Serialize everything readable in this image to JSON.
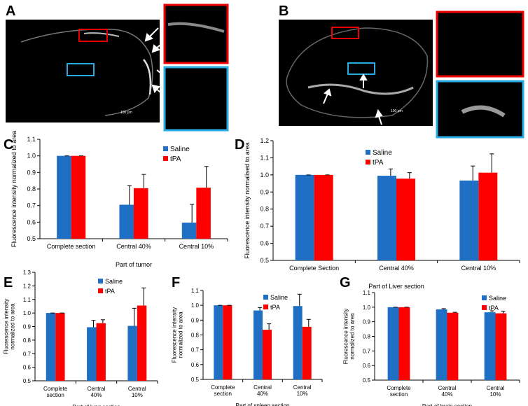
{
  "images": [
    {
      "panel": "A",
      "scale_label": "100 μm"
    },
    {
      "panel": "B",
      "scale_label": "100 μm"
    }
  ],
  "chart_data": [
    {
      "type": "bar",
      "panel": "C",
      "y_label": "Fluorescence intensity normalized to area",
      "x_label": "Part of tumor",
      "categories": [
        "Complete section",
        "Central 40%",
        "Central 10%"
      ],
      "series": [
        {
          "name": "Saline",
          "color": "#1f6fc4",
          "values": [
            1.0,
            0.705,
            0.597
          ],
          "errors": [
            0,
            0.115,
            0.11
          ]
        },
        {
          "name": "tPA",
          "color": "#ff0000",
          "values": [
            1.0,
            0.805,
            0.808
          ],
          "errors": [
            0,
            0.083,
            0.128
          ]
        }
      ],
      "ylim": [
        0.5,
        1.1
      ],
      "yticks": [
        0.5,
        0.6,
        0.7,
        0.8,
        0.9,
        {
          "value": 1,
          "label": "1.0"
        },
        1.1
      ]
    },
    {
      "type": "bar",
      "panel": "D",
      "y_label": "Fluorescence intensity normalised to area",
      "x_label": "Part of Liver section",
      "categories": [
        "Complete Section",
        "Central 40%",
        "Central 10%"
      ],
      "series": [
        {
          "name": "Saline",
          "color": "#1f6fc4",
          "values": [
            1.0,
            0.995,
            0.967
          ],
          "errors": [
            0,
            0.04,
            0.085
          ]
        },
        {
          "name": "tPA",
          "color": "#ff0000",
          "values": [
            1.0,
            0.978,
            1.013
          ],
          "errors": [
            0,
            0.035,
            0.11
          ]
        }
      ],
      "ylim": [
        0.5,
        1.2
      ],
      "yticks": [
        0.5,
        0.6,
        0.7,
        0.8,
        0.9,
        {
          "value": 1,
          "label": "1.0"
        },
        1.1,
        1.2
      ]
    },
    {
      "type": "bar",
      "panel": "E",
      "y_label": "Fluorescence intensity normalized to area",
      "x_label": "Part of lung section",
      "categories": [
        "Complete section",
        "Central 40%",
        "Central 10%"
      ],
      "series": [
        {
          "name": "Saline",
          "color": "#1f6fc4",
          "values": [
            1.0,
            0.895,
            0.905
          ],
          "errors": [
            0,
            0.05,
            0.13
          ]
        },
        {
          "name": "tPA",
          "color": "#ff0000",
          "values": [
            1.0,
            0.925,
            1.055
          ],
          "errors": [
            0,
            0.025,
            0.13
          ]
        }
      ],
      "ylim": [
        0.5,
        1.3
      ],
      "yticks": [
        0.5,
        0.6,
        0.7,
        0.8,
        0.9,
        {
          "value": 1,
          "label": "1.0"
        },
        1.1,
        1.2,
        1.3
      ]
    },
    {
      "type": "bar",
      "panel": "F",
      "y_label": "Fluorescence intensity normalized to area",
      "x_label": "Part of spleen section",
      "categories": [
        "Complete section",
        "Central 40%",
        "Central 10%"
      ],
      "series": [
        {
          "name": "Saline",
          "color": "#1f6fc4",
          "values": [
            1.0,
            0.965,
            0.995
          ],
          "errors": [
            0,
            0.02,
            0.08
          ]
        },
        {
          "name": "tPA",
          "color": "#ff0000",
          "values": [
            1.0,
            0.835,
            0.855
          ],
          "errors": [
            0,
            0.04,
            0.05
          ]
        }
      ],
      "ylim": [
        0.5,
        1.1
      ],
      "yticks": [
        0.5,
        0.6,
        0.7,
        0.8,
        0.9,
        {
          "value": 1,
          "label": "1.0"
        },
        1.1
      ]
    },
    {
      "type": "bar",
      "panel": "G",
      "y_label": "Fluorescence intensity normalized to area",
      "x_label": "Part of brain section",
      "categories": [
        "Complete section",
        "Central 40%",
        "Central 10%"
      ],
      "series": [
        {
          "name": "Saline",
          "color": "#1f6fc4",
          "values": [
            1.0,
            0.985,
            0.965
          ],
          "errors": [
            0,
            0.005,
            0.01
          ]
        },
        {
          "name": "tPA",
          "color": "#ff0000",
          "values": [
            1.0,
            0.962,
            0.958
          ],
          "errors": [
            0,
            0.003,
            0.015
          ]
        }
      ],
      "ylim": [
        0.5,
        1.1
      ],
      "yticks": [
        0.5,
        0.6,
        0.7,
        0.8,
        0.9,
        {
          "value": 1,
          "label": "1.0"
        },
        1.1
      ]
    }
  ]
}
